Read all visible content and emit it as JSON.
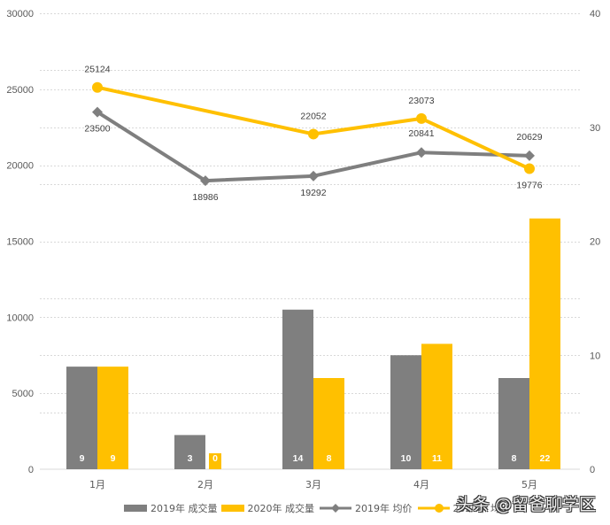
{
  "chart_data": {
    "type": "bar+line",
    "title": "",
    "categories": [
      "1月",
      "2月",
      "3月",
      "4月",
      "5月"
    ],
    "left_axis": {
      "label": "",
      "ticks": [
        0,
        5000,
        10000,
        15000,
        20000,
        25000,
        30000
      ],
      "range": [
        0,
        30000
      ]
    },
    "right_axis": {
      "label": "",
      "ticks": [
        0,
        10,
        20,
        30,
        40
      ],
      "range": [
        0,
        40
      ]
    },
    "series": [
      {
        "name": "2019年 成交量",
        "type": "bar",
        "axis": "right",
        "color": "#7f7f7f",
        "values": [
          9,
          3,
          14,
          10,
          8
        ]
      },
      {
        "name": "2020年 成交量",
        "type": "bar",
        "axis": "right",
        "color": "#ffc000",
        "values": [
          9,
          0,
          8,
          11,
          22
        ]
      },
      {
        "name": "2019年 均价",
        "type": "line",
        "axis": "left",
        "marker": "diamond",
        "color": "#7f7f7f",
        "values": [
          23500,
          18986,
          19292,
          20841,
          20629
        ]
      },
      {
        "name": "2020年 均价",
        "type": "line",
        "axis": "left",
        "marker": "circle",
        "color": "#ffc000",
        "values": [
          25124,
          null,
          22052,
          23073,
          19776
        ]
      }
    ],
    "grid": true,
    "legend_position": "bottom"
  },
  "legend": {
    "items": [
      {
        "label": "2019年 成交量"
      },
      {
        "label": "2020年 成交量"
      },
      {
        "label": "2019年 均价"
      },
      {
        "label": "2020年 均价"
      }
    ]
  },
  "watermark": "头条 @留爸聊学区"
}
